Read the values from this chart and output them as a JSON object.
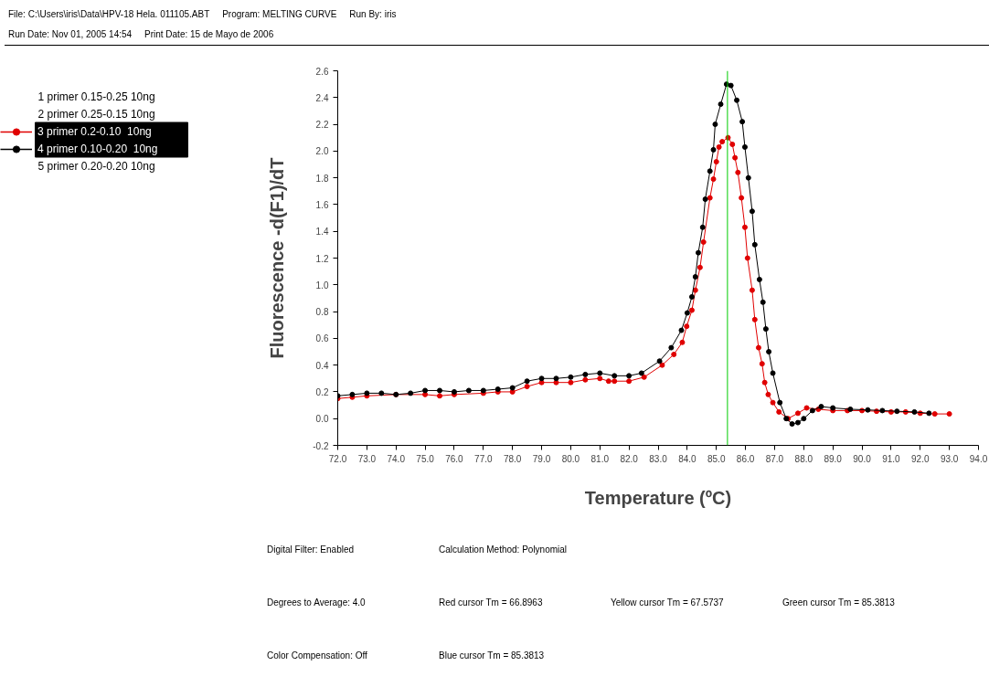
{
  "chart_data": {
    "type": "line",
    "xlabel": "Temperature (ºC)",
    "ylabel": "Fluorescence -d(F1)/dT",
    "xlim": [
      72,
      94
    ],
    "ylim": [
      -0.2,
      2.6
    ],
    "xticks": [
      {
        "value": 72,
        "label": "72.0"
      },
      {
        "value": 73,
        "label": "73.0"
      },
      {
        "value": 74,
        "label": "74.0"
      },
      {
        "value": 75,
        "label": "75.0"
      },
      {
        "value": 76,
        "label": "76.0"
      },
      {
        "value": 77,
        "label": "77.0"
      },
      {
        "value": 78,
        "label": "78.0"
      },
      {
        "value": 79,
        "label": "79.0"
      },
      {
        "value": 80,
        "label": "80.0"
      },
      {
        "value": 81,
        "label": "81.0"
      },
      {
        "value": 82,
        "label": "82.0"
      },
      {
        "value": 83,
        "label": "83.0"
      },
      {
        "value": 84,
        "label": "84.0"
      },
      {
        "value": 85,
        "label": "85.0"
      },
      {
        "value": 86,
        "label": "86.0"
      },
      {
        "value": 87,
        "label": "87.0"
      },
      {
        "value": 88,
        "label": "88.0"
      },
      {
        "value": 89,
        "label": "89.0"
      },
      {
        "value": 90,
        "label": "90.0"
      },
      {
        "value": 91,
        "label": "91.0"
      },
      {
        "value": 92,
        "label": "92.0"
      },
      {
        "value": 93,
        "label": "93.0"
      },
      {
        "value": 94,
        "label": "94.0"
      }
    ],
    "yticks": [
      {
        "value": -0.2,
        "label": "-0.2"
      },
      {
        "value": 0,
        "label": "0.0"
      },
      {
        "value": 0.2,
        "label": "0.2"
      },
      {
        "value": 0.4,
        "label": "0.4"
      },
      {
        "value": 0.6,
        "label": "0.6"
      },
      {
        "value": 0.8,
        "label": "0.8"
      },
      {
        "value": 1.0,
        "label": "1.0"
      },
      {
        "value": 1.2,
        "label": "1.2"
      },
      {
        "value": 1.4,
        "label": "1.4"
      },
      {
        "value": 1.6,
        "label": "1.6"
      },
      {
        "value": 1.8,
        "label": "1.8"
      },
      {
        "value": 2.0,
        "label": "2.0"
      },
      {
        "value": 2.2,
        "label": "2.2"
      },
      {
        "value": 2.4,
        "label": "2.4"
      },
      {
        "value": 2.6,
        "label": "2.6"
      }
    ],
    "grid": false,
    "legend": "top left",
    "marker": "circle",
    "line_style": "solid",
    "ref_lines": [
      {
        "axis": "x",
        "value": 85.3813,
        "color": "#00cc00"
      }
    ],
    "series": [
      {
        "name": "3 primer 0.2-0.10  10ng",
        "color": "#e00000",
        "x": [
          72,
          72.5,
          73,
          74,
          75,
          75.5,
          76,
          77,
          77.5,
          78,
          78.5,
          79,
          79.5,
          80,
          80.5,
          81,
          81.3,
          81.5,
          82,
          82.52,
          83.14,
          83.54,
          83.83,
          83.98,
          84.16,
          84.28,
          84.44,
          84.56,
          84.78,
          84.9,
          85.0,
          85.09,
          85.2,
          85.4,
          85.55,
          85.64,
          85.74,
          85.86,
          85.98,
          86.07,
          86.23,
          86.32,
          86.45,
          86.57,
          86.66,
          86.78,
          86.94,
          87.15,
          87.46,
          87.8,
          88.1,
          88.5,
          89,
          89.5,
          90,
          90.5,
          91,
          91.5,
          92,
          92.5,
          93
        ],
        "values": [
          0.15,
          0.16,
          0.17,
          0.18,
          0.18,
          0.17,
          0.18,
          0.19,
          0.2,
          0.2,
          0.24,
          0.27,
          0.27,
          0.27,
          0.29,
          0.3,
          0.28,
          0.28,
          0.28,
          0.31,
          0.4,
          0.48,
          0.57,
          0.69,
          0.81,
          0.96,
          1.13,
          1.32,
          1.65,
          1.79,
          1.92,
          2.03,
          2.07,
          2.1,
          2.05,
          1.95,
          1.84,
          1.65,
          1.43,
          1.2,
          0.96,
          0.74,
          0.53,
          0.41,
          0.27,
          0.18,
          0.12,
          0.05,
          0.0,
          0.04,
          0.08,
          0.07,
          0.06,
          0.06,
          0.06,
          0.055,
          0.05,
          0.05,
          0.04,
          0.035,
          0.035
        ]
      },
      {
        "name": "4 primer 0.10-0.20  10ng",
        "color": "#000000",
        "x": [
          72,
          72.5,
          73,
          73.5,
          74,
          74.5,
          75,
          75.5,
          76,
          76.5,
          77,
          77.5,
          78,
          78.5,
          79,
          79.5,
          80,
          80.5,
          81,
          81.5,
          82,
          82.43,
          83.05,
          83.45,
          83.8,
          84.0,
          84.16,
          84.28,
          84.38,
          84.53,
          84.62,
          84.78,
          84.9,
          84.96,
          85.15,
          85.35,
          85.5,
          85.7,
          85.89,
          85.98,
          86.1,
          86.23,
          86.32,
          86.48,
          86.6,
          86.7,
          86.8,
          86.94,
          87.18,
          87.4,
          87.6,
          87.8,
          88.0,
          88.3,
          88.6,
          89,
          89.6,
          90.2,
          90.7,
          91.2,
          91.8,
          92.3
        ],
        "values": [
          0.17,
          0.18,
          0.19,
          0.19,
          0.18,
          0.19,
          0.21,
          0.21,
          0.2,
          0.21,
          0.21,
          0.22,
          0.23,
          0.28,
          0.3,
          0.3,
          0.31,
          0.33,
          0.34,
          0.32,
          0.32,
          0.34,
          0.43,
          0.53,
          0.66,
          0.79,
          0.91,
          1.06,
          1.24,
          1.43,
          1.64,
          1.85,
          2.01,
          2.2,
          2.35,
          2.5,
          2.49,
          2.38,
          2.22,
          2.03,
          1.8,
          1.55,
          1.3,
          1.04,
          0.87,
          0.67,
          0.5,
          0.34,
          0.12,
          0.0,
          -0.04,
          -0.03,
          0.0,
          0.06,
          0.09,
          0.08,
          0.07,
          0.065,
          0.06,
          0.055,
          0.05,
          0.04
        ]
      }
    ],
    "annotations": [
      "File: C:\\Users\\iris\\Data\\HPV-18 Hela. 011105.ABT",
      "Program: MELTING CURVE",
      "Run By: iris",
      "Run Date: Nov 01, 2005 14:54",
      "Print Date: 15 de Mayo de 2006",
      "1 primer 0.15-0.25    10ng",
      "2 primer 0.25-0.15  10ng",
      "5 primer 0.20-0.20   10ng",
      "Digital Filter: Enabled",
      "Calculation Method: Polynomial",
      "Degrees to Average: 4.0",
      "Red cursor Tm = 66.8963",
      "Yellow cursor Tm = 67.5737",
      "Green cursor Tm = 85.3813",
      "Color Compensation: Off",
      "Blue cursor Tm = 85.3813"
    ]
  }
}
